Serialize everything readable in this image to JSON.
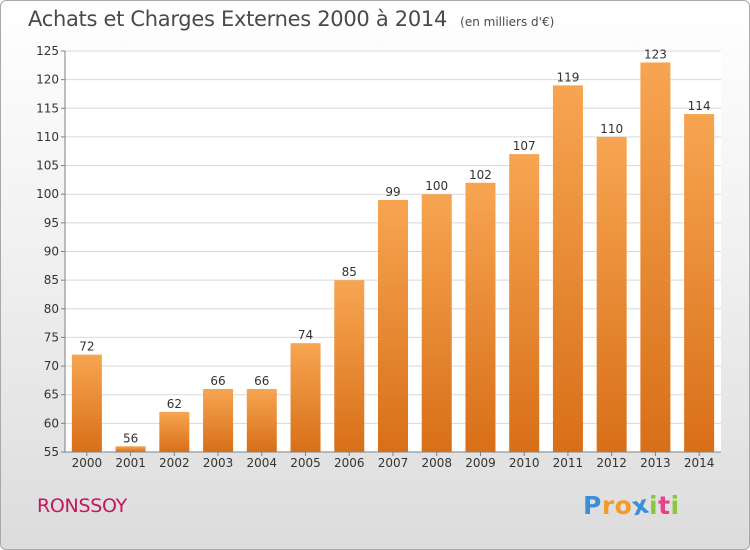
{
  "header": {
    "title": "Achats et Charges Externes 2000 à 2014",
    "subtitle": "(en milliers d'€)"
  },
  "footer": {
    "commune": "RONSSOY",
    "brand": {
      "letters": [
        "P",
        "r",
        "o",
        "x",
        "i",
        "t",
        "i"
      ],
      "colors": [
        "#3a8fd8",
        "#f39a2b",
        "#f39a2b",
        "#3a8fd8",
        "#8cc63f",
        "#e9428a",
        "#8cc63f"
      ]
    }
  },
  "chart_data": {
    "type": "bar",
    "categories": [
      "2000",
      "2001",
      "2002",
      "2003",
      "2004",
      "2005",
      "2006",
      "2007",
      "2008",
      "2009",
      "2010",
      "2011",
      "2012",
      "2013",
      "2014"
    ],
    "values": [
      72,
      56,
      62,
      66,
      66,
      74,
      85,
      99,
      100,
      102,
      107,
      119,
      110,
      123,
      114
    ],
    "ylim": [
      55,
      125
    ],
    "yticks": [
      55,
      60,
      65,
      70,
      75,
      80,
      85,
      90,
      95,
      100,
      105,
      110,
      115,
      120,
      125
    ],
    "grid": true,
    "colors": {
      "bar_light": "#f7a552",
      "bar_dark": "#d86f18",
      "grid": "#d9d9d9",
      "axis": "#7f7f7f",
      "text": "#333333"
    }
  }
}
